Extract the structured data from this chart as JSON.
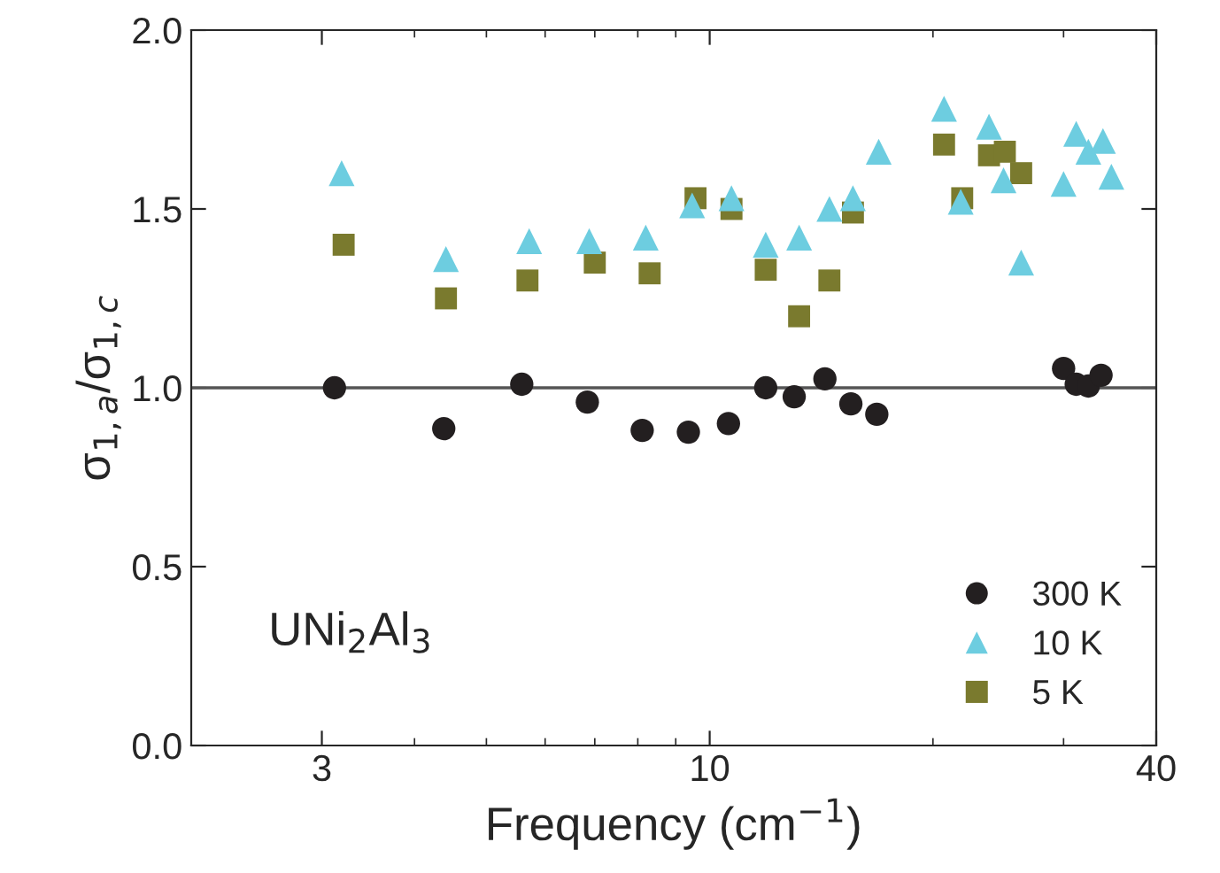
{
  "chart_data": {
    "type": "scatter",
    "xlabel": "Frequency (cm$^{−1}$)",
    "ylabel": "σ$_{1,a}$/σ$_{1,c}$",
    "log": "x",
    "xlim": [
      2,
      40
    ],
    "xticks": [
      3,
      10,
      40
    ],
    "ylim": [
      0.0,
      2.0
    ],
    "yticks": [
      {
        "value": 0,
        "label": "0.0"
      },
      {
        "value": 0.5,
        "label": "0.5"
      },
      {
        "value": 1,
        "label": "1.0"
      },
      {
        "value": 1.5,
        "label": "1.5"
      },
      {
        "value": 2,
        "label": "2.0"
      }
    ],
    "grid": false,
    "legend": "bottom right",
    "annotations": [
      "UNi$_{2}$Al$_{3}$"
    ],
    "ref_lines": [
      {
        "axis": "y",
        "value": 1.0,
        "color": "#555555"
      }
    ],
    "series": [
      {
        "name": "300 K",
        "color": "#231f20",
        "marker": "circle",
        "x": [
          3.12,
          4.38,
          5.58,
          6.84,
          8.11,
          9.36,
          10.6,
          11.9,
          13.0,
          14.3,
          15.5,
          16.8,
          30.0,
          31.2,
          32.4,
          33.7
        ],
        "values": [
          1.0,
          0.886,
          1.01,
          0.96,
          0.881,
          0.876,
          0.9,
          1.0,
          0.975,
          1.025,
          0.955,
          0.926,
          1.054,
          1.01,
          1.005,
          1.035
        ]
      },
      {
        "name": "10 K",
        "color": "#6dcde0",
        "marker": "triangle",
        "x": [
          3.19,
          4.41,
          5.71,
          6.88,
          8.2,
          9.47,
          10.7,
          11.9,
          13.2,
          14.5,
          15.6,
          16.9,
          20.7,
          21.8,
          23.8,
          24.9,
          26.3,
          30.0,
          31.2,
          32.4,
          33.9,
          34.8
        ],
        "values": [
          1.6,
          1.36,
          1.41,
          1.41,
          1.42,
          1.51,
          1.53,
          1.4,
          1.42,
          1.5,
          1.53,
          1.66,
          1.78,
          1.52,
          1.73,
          1.58,
          1.35,
          1.57,
          1.71,
          1.66,
          1.69,
          1.59
        ]
      },
      {
        "name": "5 K",
        "color": "#7a7a2e",
        "marker": "square",
        "x": [
          3.21,
          4.41,
          5.68,
          7.0,
          8.3,
          9.57,
          10.7,
          11.9,
          13.2,
          14.5,
          15.6,
          20.7,
          21.9,
          23.8,
          25.0,
          26.3
        ],
        "values": [
          1.4,
          1.25,
          1.3,
          1.35,
          1.32,
          1.53,
          1.5,
          1.33,
          1.2,
          1.3,
          1.49,
          1.68,
          1.53,
          1.65,
          1.66,
          1.6
        ]
      }
    ]
  }
}
